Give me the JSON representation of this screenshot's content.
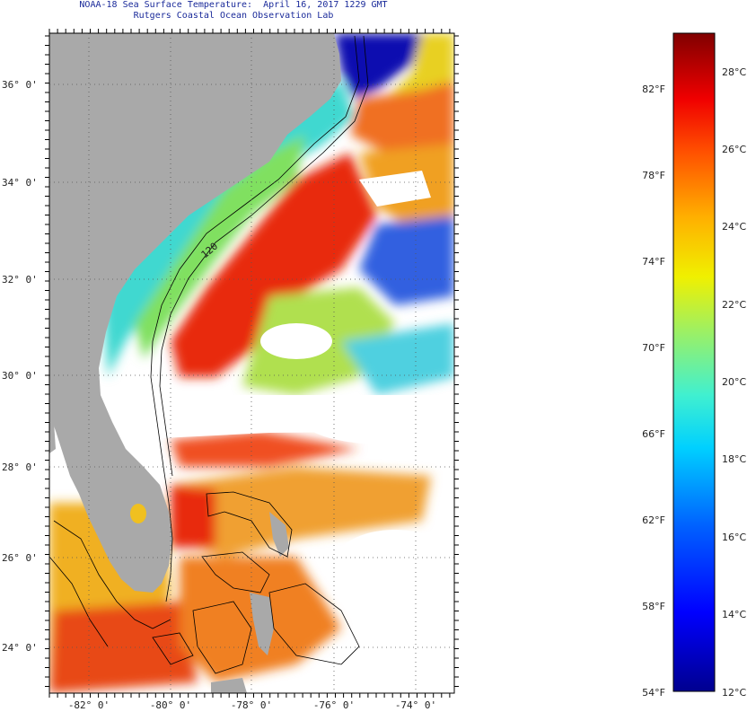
{
  "title_line1": "NOAA-18 Sea Surface Temperature:  April 16, 2017 1229 GMT",
  "title_line2": "Rutgers Coastal Ocean Observation Lab",
  "lat_labels": [
    "36° 0'",
    "34° 0'",
    "32° 0'",
    "30° 0'",
    "28° 0'",
    "26° 0'",
    "24° 0'"
  ],
  "lon_labels": [
    "-82° 0'",
    "-80° 0'",
    "-78° 0'",
    "-76° 0'",
    "-74° 0'"
  ],
  "colorbar": {
    "f_labels": [
      "82°F",
      "78°F",
      "74°F",
      "70°F",
      "66°F",
      "62°F",
      "58°F",
      "54°F"
    ],
    "c_labels": [
      "28°C",
      "26°C",
      "24°C",
      "22°C",
      "20°C",
      "18°C",
      "16°C",
      "14°C",
      "12°C"
    ],
    "range_c": [
      12,
      29
    ]
  },
  "contour_label": "120",
  "colors": {
    "land": "#a9a9a9",
    "no_data": "#ffffff",
    "frame": "#000000",
    "title": "#1a2a9a"
  }
}
